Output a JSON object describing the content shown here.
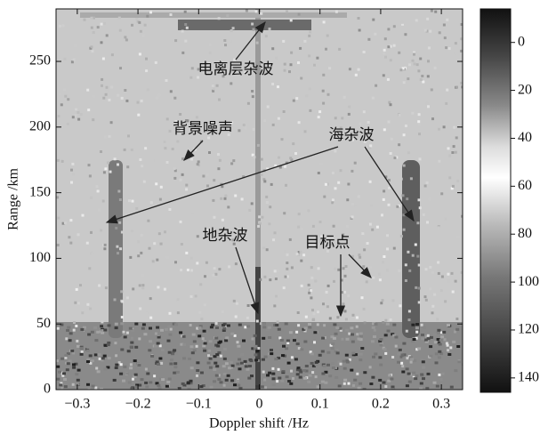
{
  "chart_data": {
    "type": "range_doppler_map",
    "xlabel": "Doppler shift /Hz",
    "ylabel": "Range /km",
    "xlim": [
      -0.335,
      0.335
    ],
    "xticks": [
      {
        "value": -0.3,
        "label": "−0.3"
      },
      {
        "value": -0.2,
        "label": "−0.2"
      },
      {
        "value": -0.1,
        "label": "−0.1"
      },
      0,
      0.1,
      0.2,
      0.3
    ],
    "ylim": [
      0,
      290
    ],
    "yticks": [
      0,
      50,
      100,
      150,
      200,
      250
    ],
    "colorbar": {
      "lim": [
        -14,
        146
      ],
      "ticks": [
        0,
        20,
        40,
        60,
        80,
        100,
        120,
        140
      ]
    },
    "annotations": [
      "电离层杂波",
      "背景噪声",
      "海杂波",
      "地杂波",
      "目标点"
    ]
  }
}
